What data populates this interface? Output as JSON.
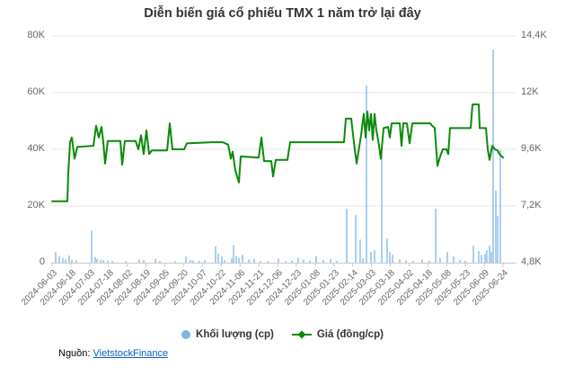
{
  "title": "Diễn biến giá cổ phiếu TMX 1 năm trở lại đây",
  "legend": {
    "volume": {
      "label": "Khối lượng (cp)",
      "color": "#7cb5ec"
    },
    "price": {
      "label": "Giá (đồng/cp)",
      "color": "#0a8a0a"
    }
  },
  "source": {
    "prefix": "Nguồn:",
    "link_text": "VietstockFinance",
    "link_color": "#0563c1"
  },
  "colors": {
    "grid": "#e6e6e6",
    "axis_line": "#c9c9c9",
    "tick": "#c9c9c9",
    "volume_bar": "#7cb5ec",
    "price_line": "#0a8a0a",
    "axis_text": "#666666",
    "title_text": "#333333"
  },
  "chart_data": {
    "type": "combo-bar-line",
    "title": "Diễn biến giá cổ phiếu TMX 1 năm trở lại đây",
    "grid": "horizontal-only",
    "legend_position": "bottom-center",
    "x_axis": {
      "kind": "date",
      "rotation_deg": -45,
      "first_date": "2024-06-03",
      "last_date": "2025-06-24",
      "tick_labels": [
        "2024-06-03",
        "2024-06-18",
        "2024-07-03",
        "2024-07-18",
        "2024-08-02",
        "2024-08-19",
        "2024-09-05",
        "2024-09-20",
        "2024-10-07",
        "2024-10-22",
        "2024-11-06",
        "2024-11-21",
        "2024-12-06",
        "2024-12-23",
        "2025-01-08",
        "2025-01-23",
        "2025-02-14",
        "2025-03-03",
        "2025-03-18",
        "2025-04-02",
        "2025-04-18",
        "2025-05-08",
        "2025-05-23",
        "2025-06-09",
        "2025-06-24"
      ]
    },
    "y_axis_left": {
      "series": "Khối lượng (cp)",
      "min": 0,
      "max": 80000,
      "tick_labels_bottom_to_top": [
        "0",
        "20K",
        "40K",
        "60K",
        "80K"
      ]
    },
    "y_axis_right": {
      "series": "Giá (đồng/cp)",
      "min": 4800,
      "max": 14400,
      "tick_labels_bottom_to_top": [
        "4,8K",
        "7,2K",
        "9,6K",
        "12K",
        "14,4K"
      ]
    },
    "x_encoding_note": "points are [x_px, value]; x_px maps linearly to dates: 58px = 2024-06-03, 560px = 2025-06-24",
    "series": [
      {
        "name": "Khối lượng (cp)",
        "type": "bar",
        "y_axis": "left",
        "unit": "cp",
        "color": "#7cb5ec",
        "points": [
          [
            62,
            3800
          ],
          [
            66,
            2200
          ],
          [
            70,
            1600
          ],
          [
            73,
            1200
          ],
          [
            77,
            2500
          ],
          [
            80,
            1000
          ],
          [
            85,
            800
          ],
          [
            102,
            11300
          ],
          [
            106,
            2000
          ],
          [
            108,
            1300
          ],
          [
            112,
            1000
          ],
          [
            115,
            900
          ],
          [
            120,
            700
          ],
          [
            125,
            600
          ],
          [
            140,
            500
          ],
          [
            155,
            1200
          ],
          [
            160,
            900
          ],
          [
            173,
            1300
          ],
          [
            178,
            600
          ],
          [
            195,
            500
          ],
          [
            207,
            2100
          ],
          [
            212,
            1000
          ],
          [
            215,
            800
          ],
          [
            222,
            700
          ],
          [
            228,
            900
          ],
          [
            240,
            5800
          ],
          [
            243,
            3200
          ],
          [
            247,
            2200
          ],
          [
            250,
            1000
          ],
          [
            258,
            1500
          ],
          [
            260,
            6200
          ],
          [
            263,
            2400
          ],
          [
            266,
            1800
          ],
          [
            270,
            2800
          ],
          [
            277,
            1100
          ],
          [
            283,
            1300
          ],
          [
            290,
            600
          ],
          [
            298,
            500
          ],
          [
            310,
            1400
          ],
          [
            318,
            600
          ],
          [
            325,
            800
          ],
          [
            332,
            1800
          ],
          [
            338,
            1100
          ],
          [
            345,
            700
          ],
          [
            352,
            2300
          ],
          [
            360,
            900
          ],
          [
            368,
            1400
          ],
          [
            375,
            600
          ],
          [
            386,
            19000
          ],
          [
            396,
            16800
          ],
          [
            401,
            8200
          ],
          [
            404,
            1500
          ],
          [
            408,
            62500
          ],
          [
            413,
            3800
          ],
          [
            417,
            4400
          ],
          [
            425,
            39400
          ],
          [
            431,
            8500
          ],
          [
            434,
            3800
          ],
          [
            437,
            2800
          ],
          [
            445,
            1200
          ],
          [
            452,
            800
          ],
          [
            460,
            600
          ],
          [
            470,
            1100
          ],
          [
            478,
            700
          ],
          [
            485,
            19000
          ],
          [
            490,
            1600
          ],
          [
            498,
            3800
          ],
          [
            505,
            2200
          ],
          [
            512,
            900
          ],
          [
            518,
            700
          ],
          [
            527,
            6000
          ],
          [
            533,
            4100
          ],
          [
            536,
            2800
          ],
          [
            540,
            3200
          ],
          [
            542,
            4400
          ],
          [
            545,
            6000
          ],
          [
            547,
            3800
          ],
          [
            549,
            75200
          ],
          [
            552,
            25400
          ],
          [
            554,
            16500
          ],
          [
            557,
            39700
          ]
        ]
      },
      {
        "name": "Giá (đồng/cp)",
        "type": "line",
        "y_axis": "right",
        "unit": "đồng/cp",
        "color": "#0a8a0a",
        "points": [
          [
            58,
            7400
          ],
          [
            75,
            7400
          ],
          [
            76,
            8600
          ],
          [
            78,
            9900
          ],
          [
            80,
            10100
          ],
          [
            83,
            9200
          ],
          [
            86,
            9700
          ],
          [
            104,
            9750
          ],
          [
            107,
            10600
          ],
          [
            110,
            10100
          ],
          [
            113,
            10550
          ],
          [
            115,
            9900
          ],
          [
            117,
            9000
          ],
          [
            120,
            9950
          ],
          [
            134,
            9950
          ],
          [
            136,
            8950
          ],
          [
            139,
            9950
          ],
          [
            151,
            9950
          ],
          [
            154,
            9600
          ],
          [
            157,
            10200
          ],
          [
            160,
            9400
          ],
          [
            163,
            10400
          ],
          [
            166,
            9400
          ],
          [
            169,
            9550
          ],
          [
            186,
            9550
          ],
          [
            189,
            10700
          ],
          [
            192,
            9600
          ],
          [
            205,
            9600
          ],
          [
            208,
            9850
          ],
          [
            236,
            9900
          ],
          [
            248,
            9900
          ],
          [
            254,
            9800
          ],
          [
            257,
            9200
          ],
          [
            259,
            9500
          ],
          [
            262,
            8700
          ],
          [
            266,
            8200
          ],
          [
            268,
            9300
          ],
          [
            288,
            9250
          ],
          [
            291,
            10100
          ],
          [
            294,
            9100
          ],
          [
            302,
            9100
          ],
          [
            304,
            8450
          ],
          [
            307,
            9150
          ],
          [
            320,
            9150
          ],
          [
            323,
            9900
          ],
          [
            383,
            9900
          ],
          [
            385,
            10900
          ],
          [
            391,
            10900
          ],
          [
            394,
            9900
          ],
          [
            397,
            9000
          ],
          [
            402,
            10200
          ],
          [
            405,
            11100
          ],
          [
            407,
            10100
          ],
          [
            409,
            11200
          ],
          [
            411,
            10400
          ],
          [
            413,
            11100
          ],
          [
            415,
            10000
          ],
          [
            417,
            11100
          ],
          [
            419,
            10400
          ],
          [
            421,
            10000
          ],
          [
            424,
            9200
          ],
          [
            427,
            10500
          ],
          [
            432,
            10550
          ],
          [
            434,
            10100
          ],
          [
            436,
            10700
          ],
          [
            445,
            10700
          ],
          [
            447,
            9750
          ],
          [
            449,
            10700
          ],
          [
            453,
            10700
          ],
          [
            456,
            9850
          ],
          [
            459,
            10700
          ],
          [
            479,
            10700
          ],
          [
            481,
            10600
          ],
          [
            484,
            10500
          ],
          [
            487,
            8900
          ],
          [
            490,
            9300
          ],
          [
            493,
            9600
          ],
          [
            497,
            9600
          ],
          [
            499,
            9400
          ],
          [
            501,
            10500
          ],
          [
            524,
            10500
          ],
          [
            526,
            11500
          ],
          [
            533,
            11500
          ],
          [
            534,
            10500
          ],
          [
            541,
            10500
          ],
          [
            543,
            9600
          ],
          [
            545,
            9150
          ],
          [
            548,
            9750
          ],
          [
            551,
            9600
          ],
          [
            554,
            9550
          ],
          [
            556,
            9400
          ],
          [
            560,
            9250
          ]
        ]
      }
    ]
  }
}
